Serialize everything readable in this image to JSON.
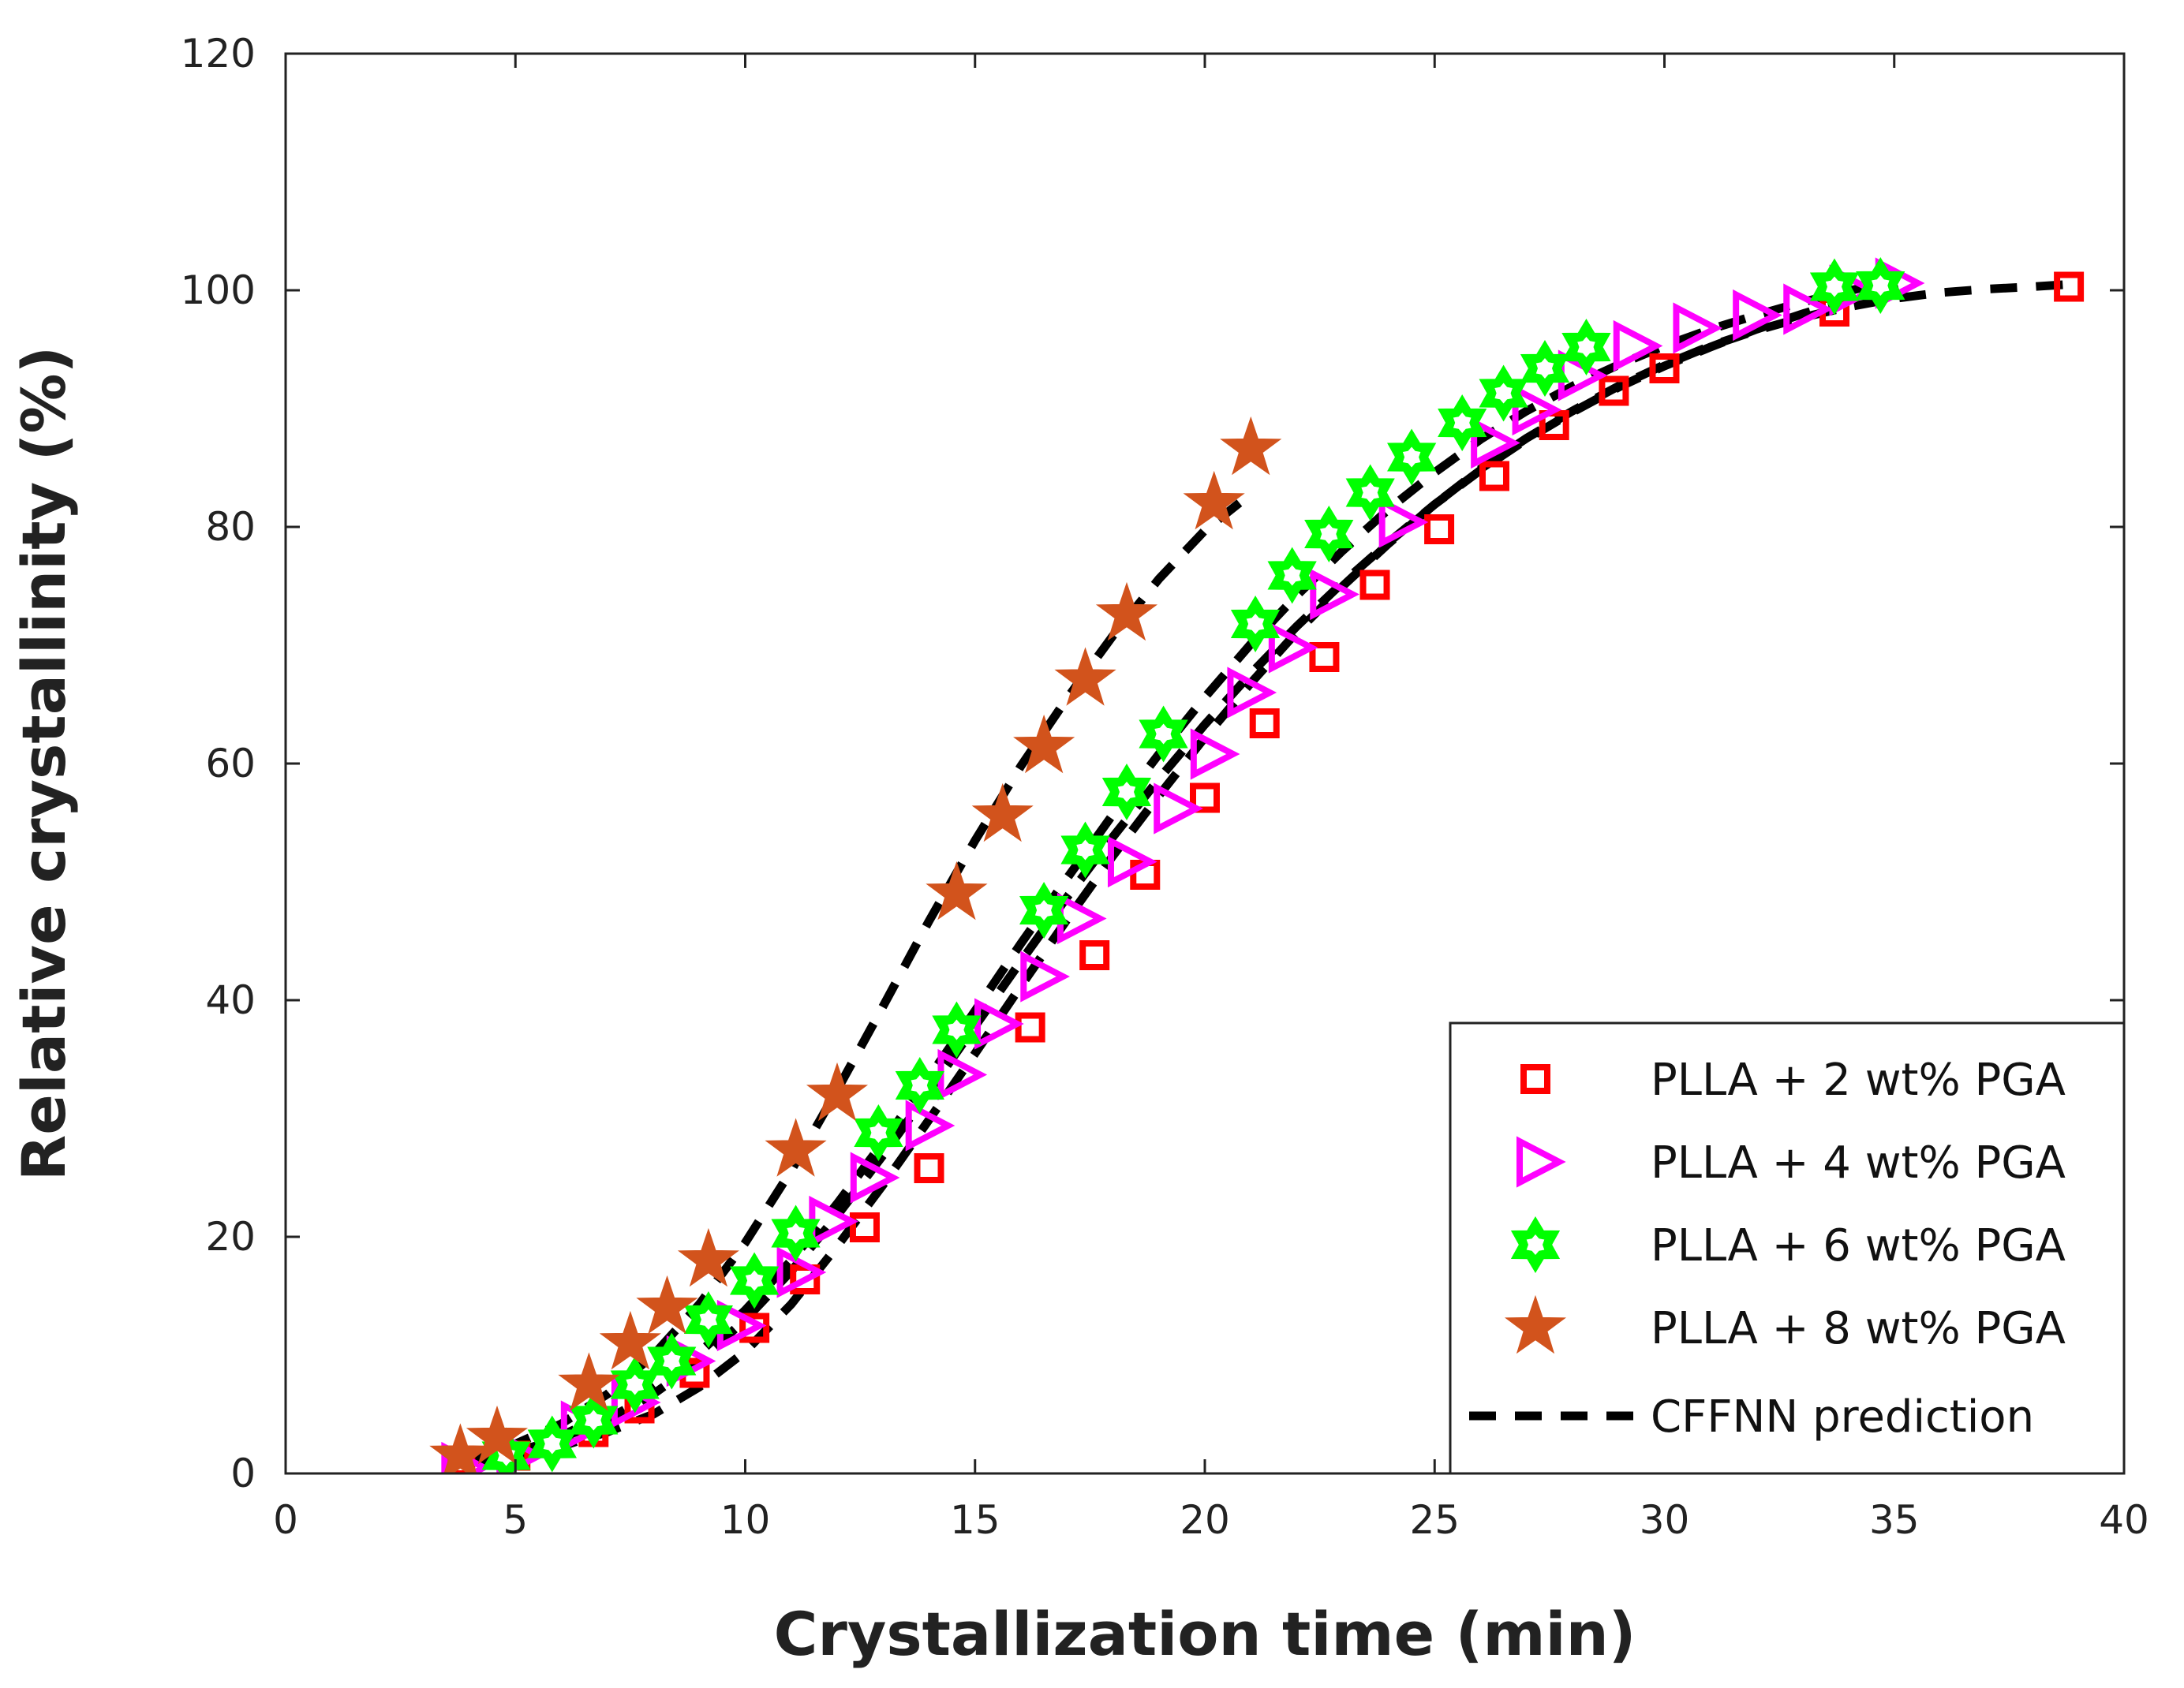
{
  "chart_data": {
    "type": "scatter",
    "xlabel": "Crystallization time (min)",
    "ylabel": "Relative crystallinity (%)",
    "xlim": [
      0,
      40
    ],
    "ylim": [
      0,
      120
    ],
    "xticks": [
      0,
      5,
      10,
      15,
      20,
      25,
      30,
      35,
      40
    ],
    "yticks": [
      0,
      20,
      40,
      60,
      80,
      100,
      120
    ],
    "legend_position": "bottom-right",
    "series": [
      {
        "name": "PLLA + 2 wt% PGA",
        "marker": "square",
        "color": "#ff0000",
        "x": [
          3.8,
          5.0,
          6.7,
          7.7,
          8.9,
          10.2,
          11.3,
          12.6,
          14.0,
          16.2,
          17.6,
          18.7,
          20.0,
          21.3,
          22.6,
          23.7,
          25.1,
          26.3,
          27.6,
          28.9,
          30.0,
          33.7,
          38.8
        ],
        "y": [
          1.0,
          1.5,
          3.5,
          5.5,
          8.5,
          12.3,
          16.4,
          20.8,
          25.8,
          37.7,
          43.8,
          50.6,
          57.1,
          63.4,
          69.0,
          75.1,
          79.8,
          84.3,
          88.6,
          91.5,
          93.4,
          98.2,
          100.3
        ]
      },
      {
        "name": "PLLA + 4 wt% PGA",
        "marker": "triangle-right",
        "color": "#ff00ff",
        "x": [
          3.8,
          5.0,
          6.4,
          7.5,
          8.7,
          9.8,
          11.1,
          11.8,
          12.7,
          13.9,
          14.6,
          15.4,
          16.4,
          17.2,
          18.3,
          19.3,
          20.1,
          20.9,
          21.8,
          22.7,
          24.2,
          26.2,
          27.1,
          28.1,
          29.3,
          30.6,
          31.9,
          33.0,
          34.0,
          35.0
        ],
        "y": [
          0.5,
          1.5,
          4.0,
          6.0,
          9.5,
          12.5,
          17.0,
          21.3,
          25.0,
          29.4,
          33.7,
          38.0,
          42.0,
          46.9,
          51.7,
          56.2,
          60.8,
          66.0,
          69.8,
          74.3,
          80.4,
          87.1,
          89.9,
          92.8,
          95.3,
          96.8,
          97.9,
          98.4,
          100.0,
          100.6
        ]
      },
      {
        "name": "PLLA + 6 wt% PGA",
        "marker": "hexagram",
        "color": "#00ff00",
        "x": [
          4.8,
          5.8,
          6.7,
          7.6,
          8.4,
          9.2,
          10.2,
          11.1,
          12.9,
          13.8,
          14.6,
          16.5,
          17.4,
          18.3,
          19.1,
          21.1,
          21.9,
          22.7,
          23.6,
          24.5,
          25.6,
          26.5,
          27.4,
          28.3,
          33.7,
          34.7
        ],
        "y": [
          1.5,
          2.5,
          4.5,
          7.5,
          9.5,
          13.0,
          16.3,
          20.3,
          28.8,
          32.8,
          37.5,
          47.6,
          52.7,
          57.6,
          62.5,
          71.8,
          75.9,
          79.4,
          82.9,
          85.9,
          88.8,
          91.3,
          93.4,
          95.2,
          100.3,
          100.4
        ]
      },
      {
        "name": "PLLA + 8 wt% PGA",
        "marker": "star",
        "color": "#d2531c",
        "x": [
          3.8,
          4.6,
          6.6,
          7.5,
          8.3,
          9.2,
          11.1,
          12.0,
          14.6,
          15.6,
          16.5,
          17.4,
          18.3,
          20.2,
          21.0
        ],
        "y": [
          1.5,
          3.0,
          7.5,
          11.0,
          14.0,
          18.0,
          27.3,
          32.0,
          49.0,
          55.6,
          61.4,
          67.1,
          72.6,
          82.0,
          86.6
        ]
      }
    ],
    "prediction": {
      "name": "CFFNN prediction",
      "style": "dashed",
      "color": "#000000",
      "curves": [
        {
          "x": [
            3.8,
            5,
            6,
            7,
            8,
            9,
            10,
            11,
            12,
            13,
            14,
            15,
            16,
            17,
            18,
            19,
            20,
            21,
            22,
            23,
            24,
            25,
            26,
            27,
            28,
            29,
            30,
            31,
            32,
            33,
            34,
            35,
            36,
            37,
            38,
            38.8
          ],
          "y": [
            0.8,
            1.5,
            2.3,
            3.5,
            5.0,
            7.3,
            10.3,
            14.3,
            19.2,
            24.4,
            29.9,
            35.5,
            41.2,
            46.8,
            52.2,
            57.3,
            62.2,
            66.8,
            71.1,
            75.0,
            78.6,
            81.9,
            84.9,
            87.5,
            89.8,
            91.9,
            93.7,
            95.3,
            96.6,
            97.7,
            98.6,
            99.3,
            99.8,
            100.1,
            100.3,
            100.5
          ]
        },
        {
          "x": [
            4,
            5,
            6,
            7,
            8,
            9,
            10,
            11,
            12,
            13,
            14,
            15,
            16,
            17,
            18,
            19,
            20,
            21,
            22,
            23,
            24,
            25,
            26,
            27,
            28,
            29,
            30,
            31,
            32,
            33,
            34,
            35.2
          ],
          "y": [
            1.0,
            1.8,
            3.0,
            4.6,
            6.7,
            9.5,
            13.0,
            17.1,
            21.8,
            26.9,
            32.3,
            37.8,
            43.3,
            48.7,
            53.8,
            58.7,
            63.3,
            67.6,
            71.6,
            75.3,
            78.7,
            81.9,
            84.8,
            87.4,
            89.7,
            91.8,
            93.6,
            95.2,
            96.7,
            98.0,
            99.2,
            100.6
          ]
        },
        {
          "x": [
            4.8,
            6,
            7,
            8,
            9,
            10,
            11,
            12,
            13,
            14,
            15,
            16,
            17,
            18,
            19,
            20,
            21,
            22,
            23,
            24,
            25,
            26,
            27,
            28,
            29,
            30,
            31,
            32,
            33,
            34.5
          ],
          "y": [
            1.6,
            3.2,
            5.0,
            7.3,
            10.2,
            13.8,
            18.0,
            22.8,
            28.0,
            33.5,
            39.1,
            44.8,
            50.3,
            55.7,
            60.8,
            65.6,
            70.1,
            74.2,
            78.0,
            81.5,
            84.6,
            87.4,
            89.8,
            91.9,
            93.7,
            95.3,
            96.7,
            97.9,
            99.0,
            100.4
          ]
        },
        {
          "x": [
            3.8,
            5,
            6,
            7,
            8,
            9,
            10,
            11,
            12,
            13,
            14,
            15,
            16,
            17,
            18,
            19,
            20,
            21
          ],
          "y": [
            1.2,
            2.5,
            4.2,
            6.7,
            10.0,
            14.3,
            19.5,
            25.6,
            32.4,
            39.5,
            46.7,
            53.5,
            59.8,
            65.5,
            70.8,
            75.6,
            79.7,
            82.8
          ]
        }
      ]
    }
  }
}
